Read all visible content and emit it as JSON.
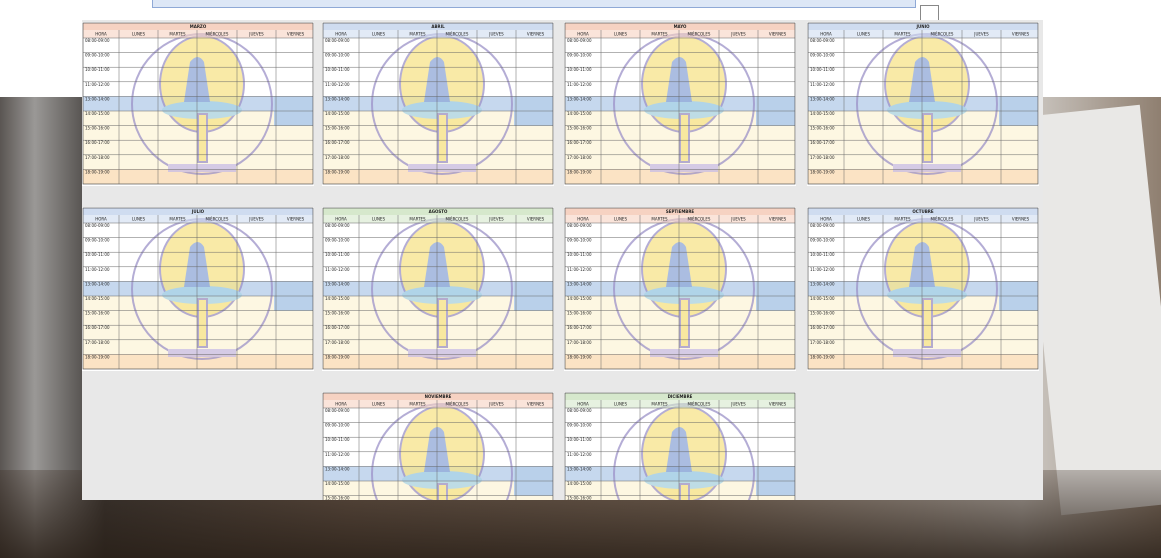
{
  "months": [
    {
      "name": "MARZO",
      "color": "#f6d2c2"
    },
    {
      "name": "ABRIL",
      "color": "#cfdcf0"
    },
    {
      "name": "MAYO",
      "color": "#f6d2c2"
    },
    {
      "name": "JUNIO",
      "color": "#cfdcf0"
    },
    {
      "name": "JULIO",
      "color": "#cfdcf0"
    },
    {
      "name": "AGOSTO",
      "color": "#d6e8cc"
    },
    {
      "name": "SEPTIEMBRE",
      "color": "#f6d2c2"
    },
    {
      "name": "OCTUBRE",
      "color": "#cfdcf0"
    },
    {
      "name": "NOVIEMBRE",
      "color": "#f6d2c2"
    },
    {
      "name": "DICIEMBRE",
      "color": "#d6e8cc"
    }
  ],
  "columns": [
    "HORA",
    "LUNES",
    "MARTES",
    "MIÉRCOLES",
    "JUEVES",
    "VIERNES"
  ],
  "hours": [
    "08:00-09:00",
    "09:00-10:00",
    "10:00-11:00",
    "11:00-12:00",
    "13:00-14:00",
    "14:00-15:00",
    "15:00-16:00",
    "16:00-17:00",
    "17:00-18:00",
    "18:00-19:00"
  ]
}
